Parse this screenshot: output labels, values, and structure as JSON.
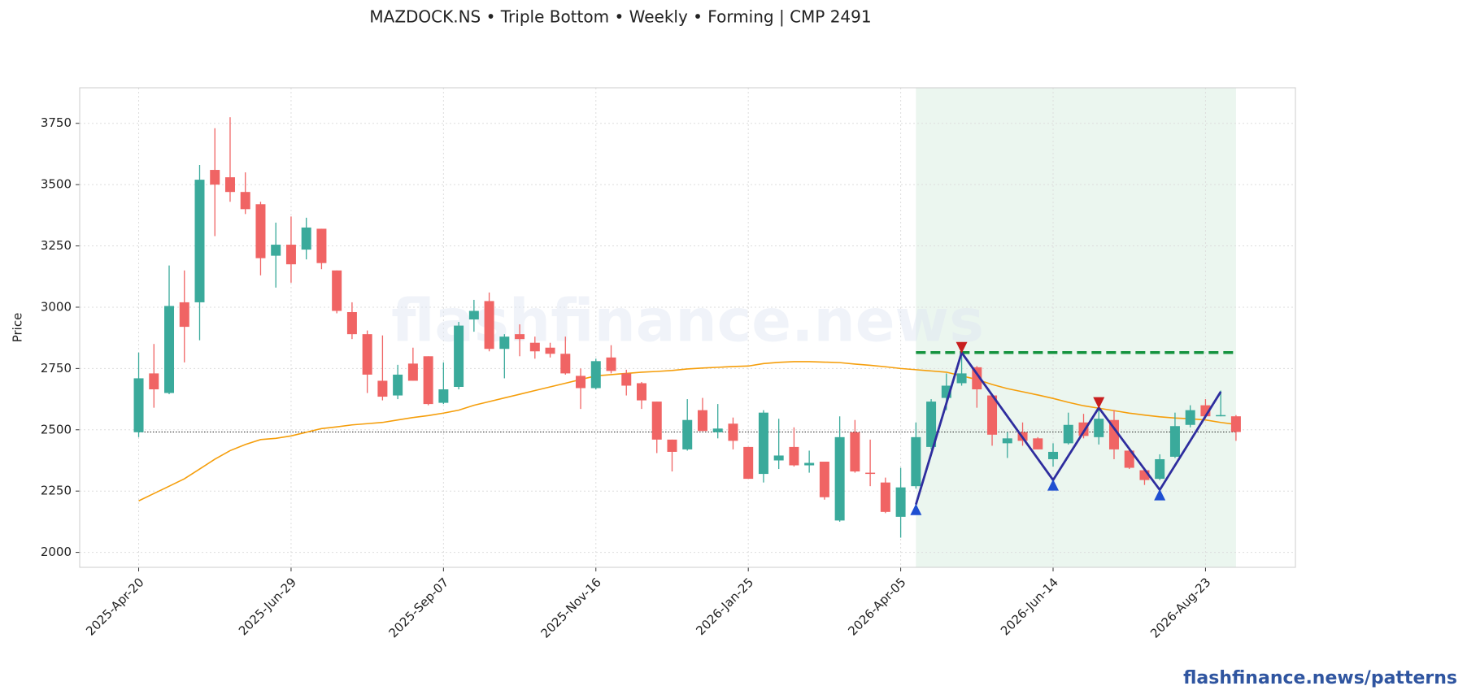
{
  "chart_data": {
    "type": "candlestick",
    "title": "MAZDOCK.NS  •  Triple Bottom  •  Weekly  •  Forming  |  CMP 2491",
    "y_label": "Price",
    "watermark": "flashfinance.news",
    "source": "flashfinance.news/patterns",
    "x": [
      "2025-Apr-20",
      "2025-Apr-27",
      "2025-May-04",
      "2025-May-11",
      "2025-May-18",
      "2025-May-25",
      "2025-Jun-01",
      "2025-Jun-08",
      "2025-Jun-15",
      "2025-Jun-22",
      "2025-Jun-29",
      "2025-Jul-06",
      "2025-Jul-13",
      "2025-Jul-20",
      "2025-Jul-27",
      "2025-Aug-03",
      "2025-Aug-10",
      "2025-Aug-17",
      "2025-Aug-24",
      "2025-Aug-31",
      "2025-Sep-07",
      "2025-Sep-14",
      "2025-Sep-21",
      "2025-Sep-28",
      "2025-Oct-05",
      "2025-Oct-12",
      "2025-Oct-19",
      "2025-Oct-26",
      "2025-Nov-02",
      "2025-Nov-09",
      "2025-Nov-16",
      "2025-Nov-23",
      "2025-Nov-30",
      "2025-Dec-07",
      "2025-Dec-14",
      "2025-Dec-21",
      "2025-Dec-28",
      "2026-Jan-04",
      "2026-Jan-11",
      "2026-Jan-18",
      "2026-Jan-25",
      "2026-Feb-01",
      "2026-Feb-08",
      "2026-Feb-15",
      "2026-Feb-22",
      "2026-Mar-01",
      "2026-Mar-08",
      "2026-Mar-15",
      "2026-Mar-22",
      "2026-Mar-29",
      "2026-Apr-05",
      "2026-Apr-12",
      "2026-Apr-19",
      "2026-Apr-26",
      "2026-May-03",
      "2026-May-10",
      "2026-May-17",
      "2026-May-24",
      "2026-May-31",
      "2026-Jun-07",
      "2026-Jun-14",
      "2026-Jun-21",
      "2026-Jun-28",
      "2026-Jul-05",
      "2026-Jul-12",
      "2026-Jul-19",
      "2026-Jul-26",
      "2026-Aug-02",
      "2026-Aug-09",
      "2026-Aug-16",
      "2026-Aug-23",
      "2026-Aug-30",
      "2026-Sep-06"
    ],
    "open": [
      2490,
      2730,
      2650,
      3020,
      3020,
      3560,
      3530,
      3470,
      3420,
      3210,
      3255,
      3235,
      3320,
      3150,
      2980,
      2890,
      2700,
      2640,
      2770,
      2800,
      2610,
      2675,
      2950,
      3025,
      2830,
      2890,
      2855,
      2835,
      2810,
      2720,
      2670,
      2795,
      2730,
      2690,
      2615,
      2460,
      2420,
      2580,
      2490,
      2525,
      2430,
      2320,
      2375,
      2430,
      2355,
      2370,
      2130,
      2490,
      2325,
      2285,
      2145,
      2270,
      2430,
      2630,
      2690,
      2755,
      2640,
      2445,
      2490,
      2465,
      2380,
      2445,
      2530,
      2470,
      2540,
      2415,
      2335,
      2300,
      2390,
      2520,
      2600,
      2555,
      2555
    ],
    "high": [
      2815,
      2850,
      3170,
      3150,
      3580,
      3730,
      3775,
      3550,
      3430,
      3345,
      3370,
      3365,
      3320,
      3150,
      3020,
      2905,
      2885,
      2765,
      2835,
      2800,
      2775,
      2940,
      3030,
      3060,
      2890,
      2930,
      2880,
      2855,
      2880,
      2750,
      2790,
      2845,
      2745,
      2695,
      2615,
      2460,
      2625,
      2630,
      2605,
      2550,
      2430,
      2580,
      2545,
      2510,
      2415,
      2370,
      2555,
      2540,
      2460,
      2305,
      2345,
      2530,
      2625,
      2730,
      2815,
      2760,
      2645,
      2490,
      2530,
      2470,
      2445,
      2570,
      2565,
      2595,
      2580,
      2420,
      2345,
      2400,
      2570,
      2600,
      2625,
      2660,
      2560
    ],
    "low": [
      2470,
      2590,
      2645,
      2775,
      2865,
      3290,
      3430,
      3380,
      3130,
      3080,
      3100,
      3195,
      3155,
      2975,
      2870,
      2650,
      2620,
      2625,
      2700,
      2600,
      2605,
      2665,
      2900,
      2820,
      2710,
      2800,
      2790,
      2795,
      2725,
      2585,
      2665,
      2730,
      2640,
      2585,
      2405,
      2330,
      2415,
      2495,
      2465,
      2420,
      2300,
      2285,
      2340,
      2350,
      2325,
      2215,
      2125,
      2325,
      2270,
      2160,
      2060,
      2260,
      2420,
      2580,
      2680,
      2590,
      2435,
      2385,
      2435,
      2420,
      2350,
      2440,
      2465,
      2440,
      2380,
      2340,
      2275,
      2295,
      2385,
      2510,
      2545,
      2555,
      2455
    ],
    "close": [
      2710,
      2665,
      3005,
      2920,
      3520,
      3500,
      3470,
      3400,
      3200,
      3255,
      3175,
      3325,
      3180,
      2985,
      2890,
      2725,
      2635,
      2725,
      2700,
      2605,
      2665,
      2925,
      2985,
      2830,
      2880,
      2870,
      2820,
      2810,
      2730,
      2670,
      2780,
      2740,
      2680,
      2620,
      2460,
      2410,
      2540,
      2495,
      2505,
      2455,
      2300,
      2570,
      2395,
      2355,
      2365,
      2225,
      2470,
      2330,
      2320,
      2165,
      2265,
      2470,
      2615,
      2680,
      2730,
      2665,
      2480,
      2465,
      2455,
      2420,
      2410,
      2520,
      2475,
      2545,
      2420,
      2345,
      2295,
      2380,
      2515,
      2580,
      2555,
      2560,
      2491
    ],
    "up_color": "#3aaa9b",
    "down_color": "#f06464",
    "moving_average": {
      "color": "#f59e0b",
      "values": [
        2210,
        2240,
        2270,
        2300,
        2340,
        2380,
        2415,
        2440,
        2460,
        2465,
        2475,
        2490,
        2505,
        2512,
        2520,
        2525,
        2530,
        2540,
        2550,
        2558,
        2568,
        2580,
        2600,
        2615,
        2630,
        2645,
        2660,
        2675,
        2690,
        2705,
        2720,
        2725,
        2730,
        2735,
        2738,
        2742,
        2748,
        2752,
        2755,
        2758,
        2760,
        2770,
        2775,
        2778,
        2778,
        2776,
        2774,
        2768,
        2763,
        2757,
        2750,
        2745,
        2740,
        2735,
        2720,
        2705,
        2685,
        2668,
        2655,
        2642,
        2628,
        2612,
        2598,
        2588,
        2578,
        2568,
        2560,
        2553,
        2548,
        2545,
        2540,
        2530,
        2522
      ]
    },
    "cmp": 2491,
    "zone": {
      "start": "2026-Apr-12",
      "end": "2026-Sep-06",
      "color": "#e8f5ec"
    },
    "resistance": {
      "value": 2815,
      "color": "#15933f"
    },
    "pattern": {
      "x": [
        "2026-Apr-12",
        "2026-May-03",
        "2026-Jun-14",
        "2026-Jul-05",
        "2026-Aug-02",
        "2026-Aug-30"
      ],
      "values": [
        2195,
        2815,
        2295,
        2590,
        2255,
        2655
      ],
      "color": "#2e2d9e",
      "peak_color": "#c81e1e",
      "trough_color": "#1f4fd1"
    },
    "ylim": [
      1939,
      3895
    ],
    "yticks": [
      2000,
      2250,
      2500,
      2750,
      3000,
      3250,
      3500,
      3750
    ],
    "xticks": [
      "2025-Apr-20",
      "2025-Jun-29",
      "2025-Sep-07",
      "2025-Nov-16",
      "2026-Jan-25",
      "2026-Apr-05",
      "2026-Jun-14",
      "2026-Aug-23"
    ],
    "grid": true
  }
}
